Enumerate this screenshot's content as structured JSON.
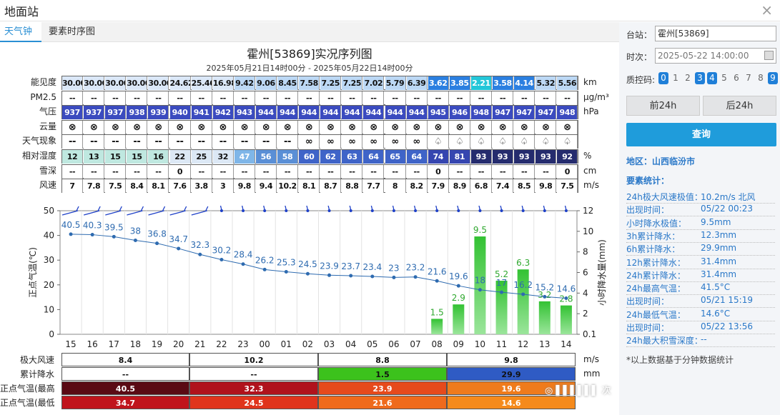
{
  "window": {
    "title": "地面站",
    "close": "×"
  },
  "tabs": [
    {
      "label": "天气钟"
    },
    {
      "label": "要素时序图"
    }
  ],
  "chart_title": "霍州[53869]实况序列图",
  "chart_subtitle": "2025年05月21日14时00分 - 2025年05月22日14时00分",
  "table": {
    "rows": [
      {
        "label": "能见度",
        "unit": "km",
        "kind": "vis",
        "values": [
          "30.00",
          "30.00",
          "30.00",
          "30.00",
          "30.00",
          "24.62",
          "25.46",
          "16.98",
          "9.42",
          "9.06",
          "8.45",
          "7.58",
          "7.25",
          "7.25",
          "7.02",
          "5.79",
          "6.39",
          "3.62",
          "3.85",
          "2.21",
          "3.58",
          "4.14",
          "5.32",
          "5.56"
        ]
      },
      {
        "label": "PM2.5",
        "unit": "μg/m³",
        "kind": "plain",
        "values": [
          "--",
          "--",
          "--",
          "--",
          "--",
          "--",
          "--",
          "--",
          "--",
          "--",
          "--",
          "--",
          "--",
          "--",
          "--",
          "--",
          "--",
          "--",
          "--",
          "--",
          "--",
          "--",
          "--",
          "--"
        ]
      },
      {
        "label": "气压",
        "unit": "hPa",
        "kind": "pres",
        "values": [
          "937",
          "937",
          "937",
          "938",
          "939",
          "940",
          "941",
          "942",
          "943",
          "944",
          "944",
          "944",
          "944",
          "944",
          "944",
          "944",
          "944",
          "945",
          "946",
          "948",
          "947",
          "947",
          "947",
          "948"
        ]
      },
      {
        "label": "云量",
        "unit": "",
        "kind": "sym",
        "values": [
          "⊗",
          "⊗",
          "⊗",
          "⊗",
          "⊗",
          "⊗",
          "⊗",
          "⊗",
          "⊗",
          "⊗",
          "⊗",
          "⊗",
          "⊗",
          "⊗",
          "⊗",
          "⊗",
          "⊗",
          "⊗",
          "⊗",
          "⊗",
          "⊗",
          "⊗",
          "⊗",
          "⊗"
        ]
      },
      {
        "label": "天气现象",
        "unit": "",
        "kind": "sym",
        "values": [
          "--",
          "--",
          "--",
          "--",
          "--",
          "--",
          "--",
          "--",
          "--",
          "--",
          "--",
          "∞",
          "∞",
          "∞",
          "∞",
          "∞",
          "∞",
          "♤",
          "♤",
          "♤",
          "♤",
          "♤",
          "♤",
          "♤"
        ]
      },
      {
        "label": "相对湿度",
        "unit": "%",
        "kind": "hum",
        "values": [
          "12",
          "13",
          "15",
          "15",
          "16",
          "22",
          "25",
          "32",
          "47",
          "56",
          "58",
          "60",
          "62",
          "63",
          "64",
          "65",
          "64",
          "74",
          "81",
          "93",
          "93",
          "93",
          "93",
          "92"
        ]
      },
      {
        "label": "雪深",
        "unit": "cm",
        "kind": "plain",
        "values": [
          "--",
          "--",
          "--",
          "--",
          "--",
          "0",
          "--",
          "--",
          "--",
          "--",
          "--",
          "--",
          "--",
          "--",
          "--",
          "--",
          "--",
          "0",
          "--",
          "--",
          "--",
          "--",
          "--",
          "0"
        ]
      },
      {
        "label": "风速",
        "unit": "m/s",
        "kind": "plain",
        "values": [
          "7",
          "7.8",
          "7.5",
          "8.4",
          "8.1",
          "7.6",
          "3.8",
          "3",
          "9.8",
          "9.4",
          "10.2",
          "8.1",
          "8.7",
          "8.8",
          "7.7",
          "8",
          "8.2",
          "7.9",
          "8.9",
          "6.8",
          "7.4",
          "8.5",
          "9.8",
          "7.5"
        ]
      }
    ]
  },
  "chart_data": {
    "type": "line",
    "categories": [
      "15",
      "16",
      "17",
      "18",
      "19",
      "20",
      "21",
      "22",
      "23",
      "00",
      "01",
      "02",
      "03",
      "04",
      "05",
      "06",
      "07",
      "08",
      "09",
      "10",
      "11",
      "12",
      "13",
      "14"
    ],
    "series": [
      {
        "values": [
          40.5,
          40.3,
          39.5,
          38,
          36.8,
          34.7,
          32.3,
          30.2,
          28.4,
          26.2,
          25.3,
          24.5,
          23.9,
          23.7,
          23.4,
          23,
          23.2,
          21.6,
          19.6,
          18,
          17,
          16.2,
          15.2,
          14.6
        ],
        "color": "#2e6bb0",
        "axis": "left"
      },
      {
        "type": "bar",
        "values": [
          null,
          null,
          null,
          null,
          null,
          null,
          null,
          null,
          null,
          null,
          null,
          null,
          null,
          null,
          null,
          null,
          null,
          1.5,
          2.9,
          9.5,
          5.2,
          6.3,
          3.2,
          2.8
        ],
        "color": "#33c233",
        "axis": "right"
      }
    ],
    "ylabel": "正点气温(℃)",
    "ylim": [
      0,
      50
    ],
    "yticks": [
      "0",
      "10",
      "20",
      "30",
      "40",
      "50"
    ],
    "y2label": "小时降水量(mm)",
    "y2ticks": [
      "0.1",
      "2",
      "4",
      "6",
      "8",
      "10",
      "12"
    ],
    "y2lim": [
      0,
      12
    ]
  },
  "summary": {
    "rows": [
      {
        "label": "极大风速",
        "unit": "m/s",
        "cells": [
          "8.4",
          "10.2",
          "8.8",
          "9.8"
        ]
      },
      {
        "label": "累计降水",
        "unit": "mm",
        "cells": [
          "--",
          "--",
          "1.5",
          "29.9"
        ]
      },
      {
        "label": "正点气温(最高)",
        "unit": "",
        "cells": [
          "40.5",
          "32.3",
          "23.9",
          "19.6"
        ]
      },
      {
        "label": "正点气温(最低)",
        "unit": "",
        "cells": [
          "34.7",
          "24.5",
          "21.6",
          "14.6"
        ]
      }
    ]
  },
  "sidebar": {
    "station_label": "台站：",
    "station_value": "霍州[53869]",
    "time_label": "时次：",
    "time_value": "2025-05-22 14:00:00",
    "qc_label": "质控码:",
    "qc_codes": [
      "0",
      "1",
      "2",
      "3",
      "4",
      "5",
      "6",
      "7",
      "8",
      "9"
    ],
    "prev_label": "前24h",
    "next_label": "后24h",
    "query_label": "查询",
    "region": "地区：山西临汾市",
    "stats_title": "要素统计：",
    "stats": [
      {
        "k": "24h极大风速极值：",
        "v": "10.2m/s 北风"
      },
      {
        "k": "出现时间：",
        "v": "05/22 00:23"
      },
      {
        "k": "小时降水极值：",
        "v": "9.5mm"
      },
      {
        "k": "3h累计降水：",
        "v": "12.3mm"
      },
      {
        "k": "6h累计降水：",
        "v": "29.9mm"
      },
      {
        "k": "12h累计降水：",
        "v": "31.4mm"
      },
      {
        "k": "24h累计降水：",
        "v": "31.4mm"
      },
      {
        "k": "24h最高气温：",
        "v": "41.5°C"
      },
      {
        "k": "出现时间：",
        "v": "05/21 15:19"
      },
      {
        "k": "24h最低气温：",
        "v": "14.6°C"
      },
      {
        "k": "出现时间：",
        "v": "05/22 13:56"
      },
      {
        "k": "24h最大积雪深度：",
        "v": "--"
      }
    ],
    "footnote": "*以上数据基于分钟数据统计"
  }
}
